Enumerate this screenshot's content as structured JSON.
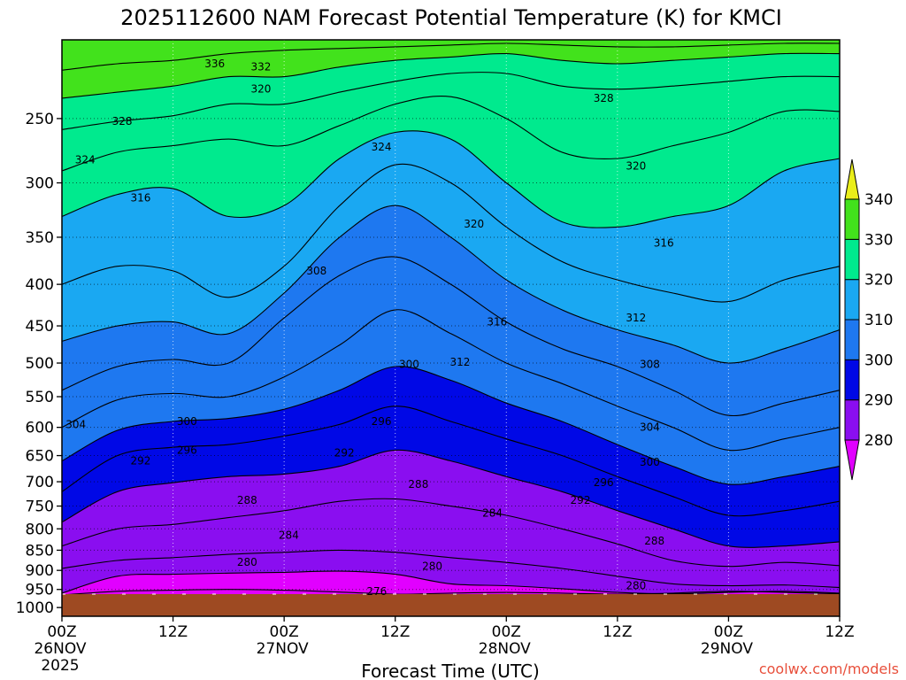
{
  "chart_data": {
    "type": "contour",
    "title": "2025112600 NAM Forecast Potential Temperature (K) for KMCI",
    "xlabel": "Forecast Time (UTC)",
    "ylabel": "",
    "x_ticks": [
      {
        "hour": 0,
        "line1": "00Z",
        "line2": "26NOV",
        "line3": "2025"
      },
      {
        "hour": 12,
        "line1": "12Z"
      },
      {
        "hour": 24,
        "line1": "00Z",
        "line2": "27NOV"
      },
      {
        "hour": 36,
        "line1": "12Z"
      },
      {
        "hour": 48,
        "line1": "00Z",
        "line2": "28NOV"
      },
      {
        "hour": 60,
        "line1": "12Z"
      },
      {
        "hour": 72,
        "line1": "00Z",
        "line2": "29NOV"
      },
      {
        "hour": 84,
        "line1": "12Z"
      }
    ],
    "xlim": [
      0,
      84
    ],
    "y_ticks": [
      250,
      300,
      350,
      400,
      450,
      500,
      550,
      600,
      650,
      700,
      750,
      800,
      850,
      900,
      950,
      1000
    ],
    "ylim": [
      1000,
      200
    ],
    "contour_interval_K": 2,
    "colorbar": {
      "ticks": [
        340,
        330,
        320,
        310,
        300,
        290,
        280
      ],
      "bands": [
        {
          "from": 270,
          "to": 280,
          "color": "#e100ff"
        },
        {
          "from": 280,
          "to": 290,
          "color": "#8a0ef0"
        },
        {
          "from": 290,
          "to": 300,
          "color": "#0008e6"
        },
        {
          "from": 300,
          "to": 310,
          "color": "#1e78f0"
        },
        {
          "from": 310,
          "to": 320,
          "color": "#1aa8f2"
        },
        {
          "from": 320,
          "to": 330,
          "color": "#00ea8e"
        },
        {
          "from": 330,
          "to": 340,
          "color": "#42e21c"
        },
        {
          "from": 340,
          "to": 350,
          "color": "#eaee1a"
        }
      ]
    },
    "isotherms": [
      {
        "theta": 276,
        "p": [
          965,
          955,
          952,
          950,
          952,
          957,
          963,
          960,
          958,
          960,
          963,
          960,
          955,
          958,
          962
        ]
      },
      {
        "theta": 280,
        "p": [
          960,
          915,
          910,
          907,
          905,
          902,
          910,
          935,
          940,
          948,
          958,
          962,
          958,
          955,
          960
        ]
      },
      {
        "theta": 284,
        "p": [
          895,
          875,
          868,
          860,
          855,
          850,
          855,
          868,
          880,
          895,
          915,
          935,
          940,
          938,
          945
        ]
      },
      {
        "theta": 288,
        "p": [
          840,
          800,
          790,
          775,
          760,
          740,
          735,
          750,
          770,
          800,
          835,
          875,
          890,
          880,
          888
        ]
      },
      {
        "theta": 292,
        "p": [
          785,
          720,
          702,
          690,
          685,
          670,
          640,
          660,
          690,
          720,
          760,
          800,
          840,
          840,
          830
        ]
      },
      {
        "theta": 296,
        "p": [
          720,
          650,
          635,
          630,
          615,
          595,
          565,
          590,
          620,
          650,
          690,
          730,
          770,
          760,
          740
        ]
      },
      {
        "theta": 300,
        "p": [
          660,
          605,
          590,
          585,
          570,
          540,
          505,
          525,
          560,
          590,
          630,
          670,
          705,
          690,
          670
        ]
      },
      {
        "theta": 304,
        "p": [
          600,
          555,
          545,
          550,
          520,
          475,
          430,
          460,
          500,
          530,
          565,
          600,
          640,
          620,
          600
        ]
      },
      {
        "theta": 308,
        "p": [
          540,
          505,
          495,
          500,
          440,
          390,
          370,
          400,
          445,
          480,
          505,
          540,
          580,
          560,
          540
        ]
      },
      {
        "theta": 312,
        "p": [
          470,
          450,
          445,
          460,
          410,
          350,
          320,
          350,
          395,
          430,
          455,
          475,
          500,
          480,
          455
        ]
      },
      {
        "theta": 316,
        "p": [
          400,
          380,
          385,
          415,
          380,
          320,
          285,
          300,
          340,
          375,
          395,
          410,
          420,
          395,
          380
        ]
      },
      {
        "theta": 320,
        "p": [
          330,
          310,
          305,
          330,
          320,
          280,
          260,
          265,
          300,
          335,
          340,
          330,
          320,
          290,
          280
        ]
      },
      {
        "theta": 324,
        "p": [
          290,
          275,
          270,
          265,
          270,
          255,
          240,
          235,
          250,
          275,
          280,
          270,
          260,
          245,
          245
        ]
      },
      {
        "theta": 328,
        "p": [
          258,
          252,
          248,
          240,
          240,
          232,
          225,
          220,
          220,
          228,
          230,
          228,
          225,
          222,
          222
        ]
      },
      {
        "theta": 332,
        "p": [
          236,
          232,
          228,
          222,
          222,
          216,
          212,
          210,
          208,
          212,
          214,
          212,
          210,
          208,
          208
        ]
      },
      {
        "theta": 336,
        "p": [
          218,
          214,
          212,
          208,
          206,
          205,
          204,
          203,
          202,
          203,
          204,
          204,
          203,
          202,
          202
        ]
      }
    ],
    "contour_labels": [
      {
        "text": "336",
        "hour": 16.5,
        "p": 214
      },
      {
        "text": "332",
        "hour": 21.5,
        "p": 216
      },
      {
        "text": "320",
        "hour": 21.5,
        "p": 230
      },
      {
        "text": "328",
        "hour": 6.5,
        "p": 252
      },
      {
        "text": "324",
        "hour": 2.5,
        "p": 281
      },
      {
        "text": "324",
        "hour": 34.5,
        "p": 271
      },
      {
        "text": "328",
        "hour": 58.5,
        "p": 236
      },
      {
        "text": "320",
        "hour": 62,
        "p": 286
      },
      {
        "text": "316",
        "hour": 8.5,
        "p": 313
      },
      {
        "text": "320",
        "hour": 44.5,
        "p": 337
      },
      {
        "text": "316",
        "hour": 65,
        "p": 356
      },
      {
        "text": "308",
        "hour": 27.5,
        "p": 385
      },
      {
        "text": "316",
        "hour": 47,
        "p": 445
      },
      {
        "text": "312",
        "hour": 62,
        "p": 440
      },
      {
        "text": "312",
        "hour": 43,
        "p": 499
      },
      {
        "text": "300",
        "hour": 37.5,
        "p": 502
      },
      {
        "text": "308",
        "hour": 63.5,
        "p": 502
      },
      {
        "text": "296",
        "hour": 34.5,
        "p": 590
      },
      {
        "text": "304",
        "hour": 1.5,
        "p": 595
      },
      {
        "text": "300",
        "hour": 13.5,
        "p": 590
      },
      {
        "text": "304",
        "hour": 63.5,
        "p": 600
      },
      {
        "text": "296",
        "hour": 13.5,
        "p": 640
      },
      {
        "text": "292",
        "hour": 8.5,
        "p": 660
      },
      {
        "text": "292",
        "hour": 30.5,
        "p": 645
      },
      {
        "text": "300",
        "hour": 63.5,
        "p": 662
      },
      {
        "text": "296",
        "hour": 58.5,
        "p": 702
      },
      {
        "text": "288",
        "hour": 38.5,
        "p": 705
      },
      {
        "text": "292",
        "hour": 56,
        "p": 738
      },
      {
        "text": "288",
        "hour": 20,
        "p": 738
      },
      {
        "text": "284",
        "hour": 46.5,
        "p": 765
      },
      {
        "text": "284",
        "hour": 24.5,
        "p": 815
      },
      {
        "text": "288",
        "hour": 64,
        "p": 828
      },
      {
        "text": "280",
        "hour": 20,
        "p": 880
      },
      {
        "text": "280",
        "hour": 40,
        "p": 890
      },
      {
        "text": "280",
        "hour": 62,
        "p": 940
      },
      {
        "text": "276",
        "hour": 34,
        "p": 955
      }
    ]
  },
  "credit": "coolwx.com/models"
}
